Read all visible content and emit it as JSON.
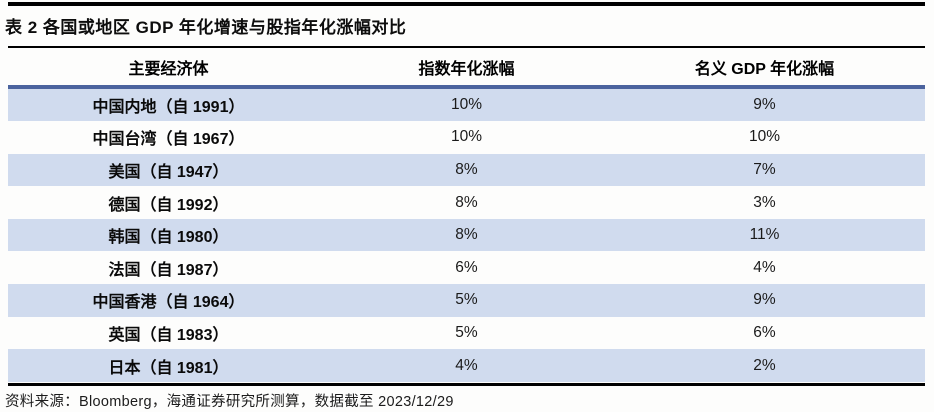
{
  "title": "表 2 各国或地区 GDP 年化增速与股指年化涨幅对比",
  "footer": {
    "source": "资料来源：Bloomberg，海通证券研究所测算，数据截至 2023/12/29"
  },
  "colors": {
    "header_rule": "#4B639E",
    "row_stripe": "#D0DBEE",
    "black_rule": "#000000",
    "background": "#FDFDFC"
  },
  "table": {
    "columns": [
      "主要经济体",
      "指数年化涨幅",
      "名义 GDP 年化涨幅"
    ],
    "rows": [
      {
        "economy": "中国内地（自 1991）",
        "index_return": "10%",
        "gdp_growth": "9%"
      },
      {
        "economy": "中国台湾（自 1967）",
        "index_return": "10%",
        "gdp_growth": "10%"
      },
      {
        "economy": "美国（自 1947）",
        "index_return": "8%",
        "gdp_growth": "7%"
      },
      {
        "economy": "德国（自 1992）",
        "index_return": "8%",
        "gdp_growth": "3%"
      },
      {
        "economy": "韩国（自 1980）",
        "index_return": "8%",
        "gdp_growth": "11%"
      },
      {
        "economy": "法国（自 1987）",
        "index_return": "6%",
        "gdp_growth": "4%"
      },
      {
        "economy": "中国香港（自 1964）",
        "index_return": "5%",
        "gdp_growth": "9%"
      },
      {
        "economy": "英国（自 1983）",
        "index_return": "5%",
        "gdp_growth": "6%"
      },
      {
        "economy": "日本（自 1981）",
        "index_return": "4%",
        "gdp_growth": "2%"
      }
    ]
  },
  "chart_data": {
    "type": "table",
    "title": "表 2 各国或地区 GDP 年化增速与股指年化涨幅对比",
    "columns": [
      "主要经济体",
      "指数年化涨幅",
      "名义 GDP 年化涨幅"
    ],
    "rows": [
      [
        "中国内地（自 1991）",
        "10%",
        "9%"
      ],
      [
        "中国台湾（自 1967）",
        "10%",
        "10%"
      ],
      [
        "美国（自 1947）",
        "8%",
        "7%"
      ],
      [
        "德国（自 1992）",
        "8%",
        "3%"
      ],
      [
        "韩国（自 1980）",
        "8%",
        "11%"
      ],
      [
        "法国（自 1987）",
        "6%",
        "4%"
      ],
      [
        "中国香港（自 1964）",
        "5%",
        "9%"
      ],
      [
        "英国（自 1983）",
        "5%",
        "6%"
      ],
      [
        "日本（自 1981）",
        "4%",
        "2%"
      ]
    ],
    "source_note": "资料来源：Bloomberg，海通证券研究所测算，数据截至 2023/12/29"
  }
}
